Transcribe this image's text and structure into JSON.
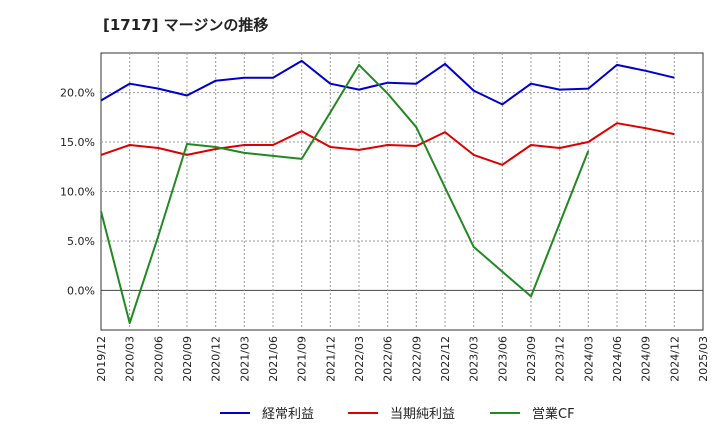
{
  "chart_data": {
    "type": "line",
    "title": "[1717]  マージンの推移",
    "x": [
      "2019/12",
      "2020/03",
      "2020/06",
      "2020/09",
      "2020/12",
      "2021/03",
      "2021/06",
      "2021/09",
      "2021/12",
      "2022/03",
      "2022/06",
      "2022/09",
      "2022/12",
      "2023/03",
      "2023/06",
      "2023/09",
      "2023/12",
      "2024/03",
      "2024/06",
      "2024/09",
      "2024/12",
      "2025/03"
    ],
    "ylim": [
      -4,
      24
    ],
    "yticks": [
      0,
      5,
      10,
      15,
      20
    ],
    "ytick_labels": [
      "0.0%",
      "5.0%",
      "10.0%",
      "15.0%",
      "20.0%"
    ],
    "grid": true,
    "legend_position": "bottom",
    "series": [
      {
        "name": "経常利益",
        "color": "#0000cc",
        "values": [
          19.2,
          20.9,
          20.4,
          19.7,
          21.2,
          21.5,
          21.5,
          23.2,
          20.9,
          20.3,
          21.0,
          20.9,
          22.9,
          20.2,
          18.8,
          20.9,
          20.3,
          20.4,
          22.8,
          22.2,
          21.5,
          null
        ]
      },
      {
        "name": "当期純利益",
        "color": "#dd0000",
        "values": [
          13.7,
          14.7,
          14.4,
          13.7,
          14.3,
          14.7,
          14.7,
          16.1,
          14.5,
          14.2,
          14.7,
          14.6,
          16.0,
          13.7,
          12.7,
          14.7,
          14.4,
          15.0,
          16.9,
          16.4,
          15.8,
          null
        ]
      },
      {
        "name": "営業CF",
        "color": "#228822",
        "values": [
          8.0,
          -3.3,
          5.5,
          14.8,
          14.5,
          13.9,
          13.6,
          13.3,
          18.0,
          22.8,
          19.9,
          16.5,
          10.4,
          4.4,
          1.9,
          -0.6,
          6.8,
          14.1,
          null,
          null,
          null,
          null
        ]
      }
    ]
  }
}
